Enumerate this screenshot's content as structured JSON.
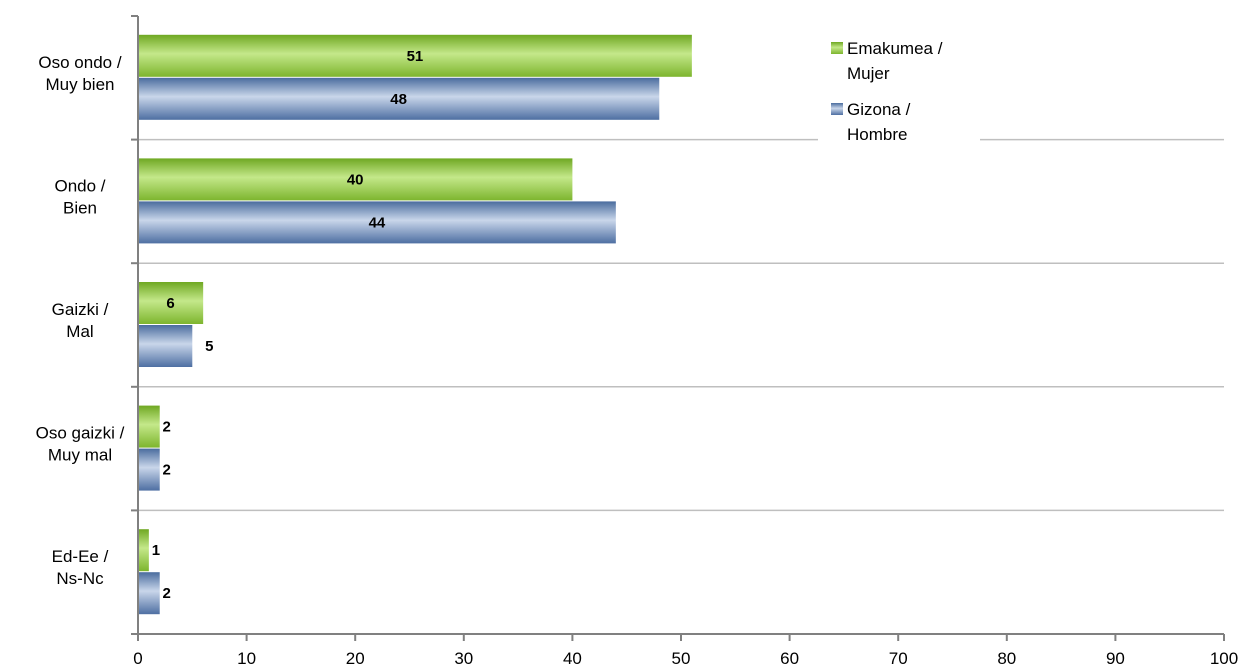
{
  "chart_data": {
    "type": "bar",
    "orientation": "horizontal",
    "categories": [
      [
        "Oso ondo /",
        "Muy bien"
      ],
      [
        "Ondo /",
        "Bien"
      ],
      [
        "Gaizki /",
        "Mal"
      ],
      [
        "Oso gaizki /",
        "Muy mal"
      ],
      [
        "Ed-Ee /",
        "Ns-Nc"
      ]
    ],
    "series": [
      {
        "name": [
          "Emakumea /",
          "Mujer"
        ],
        "color": "#8DC63F",
        "values": [
          51,
          40,
          6,
          2,
          1
        ]
      },
      {
        "name": [
          "Gizona /",
          "Hombre"
        ],
        "color": "#5B7DB0",
        "values": [
          48,
          44,
          5,
          2,
          2
        ]
      }
    ],
    "xlim": [
      0,
      100
    ],
    "xticks": [
      0,
      10,
      20,
      30,
      40,
      50,
      60,
      70,
      80,
      90,
      100
    ],
    "legend_position": "top-right",
    "grid": "horizontal separators between categories"
  }
}
